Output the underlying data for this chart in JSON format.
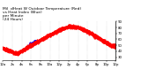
{
  "title": "Mil  demperat  ature Outdoor Temperatu  (Red)",
  "title_line1": "Mil  demperat  ature Outdoor Temperatu",
  "bg_color": "#ffffff",
  "red_color": "#ff0000",
  "blue_color": "#0000ff",
  "ylim": [
    25,
    90
  ],
  "yticks": [
    30,
    40,
    50,
    60,
    70,
    80,
    90
  ],
  "xlim": [
    0,
    1440
  ],
  "xtick_interval": 120,
  "title_fontsize": 3.2,
  "tick_fontsize": 2.8,
  "linewidth": 0.7,
  "markersize": 1.0
}
